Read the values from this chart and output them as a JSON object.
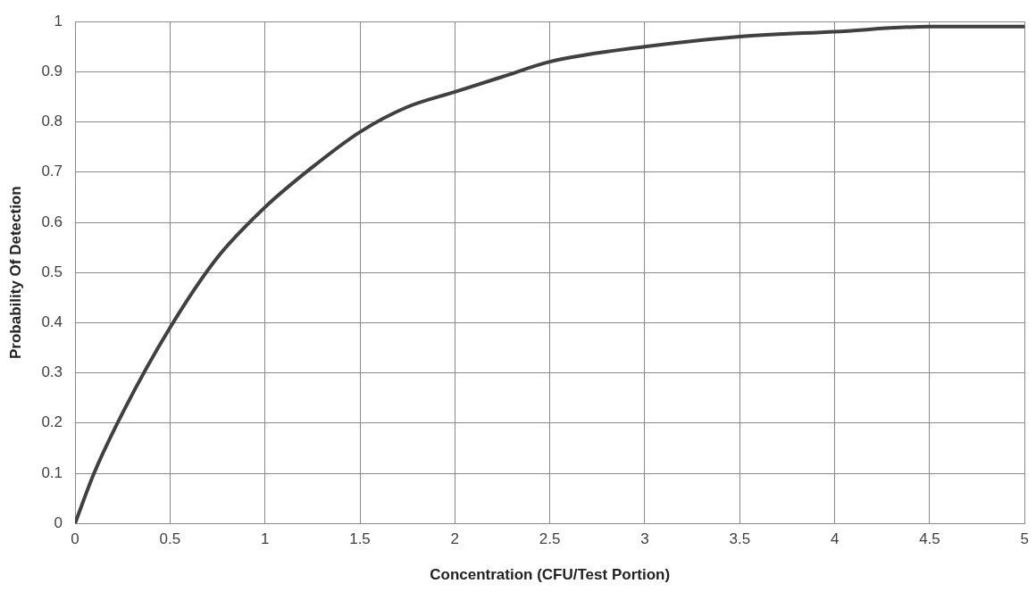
{
  "chart_data": {
    "type": "line",
    "xlabel": "Concentration (CFU/Test Portion)",
    "ylabel": "Probability Of Detection",
    "x": [
      0,
      0.1,
      0.25,
      0.5,
      0.75,
      1,
      1.25,
      1.5,
      1.75,
      2,
      2.25,
      2.5,
      3,
      3.5,
      4,
      4.5,
      5
    ],
    "series": [
      {
        "color": "#404040",
        "values": [
          0,
          0.1,
          0.22,
          0.39,
          0.53,
          0.63,
          0.71,
          0.78,
          0.83,
          0.86,
          0.89,
          0.92,
          0.95,
          0.97,
          0.98,
          0.99,
          0.99
        ]
      }
    ],
    "xlim": [
      0,
      5
    ],
    "xticks": [
      0,
      0.5,
      1,
      1.5,
      2,
      2.5,
      3,
      3.5,
      4,
      4.5,
      5
    ],
    "ylim": [
      0,
      1
    ],
    "yticks": [
      0,
      0.1,
      0.2,
      0.3,
      0.4,
      0.5,
      0.6,
      0.7,
      0.8,
      0.9,
      1
    ],
    "grid": true,
    "legend": false,
    "marker": "none",
    "line_style": "solid"
  }
}
